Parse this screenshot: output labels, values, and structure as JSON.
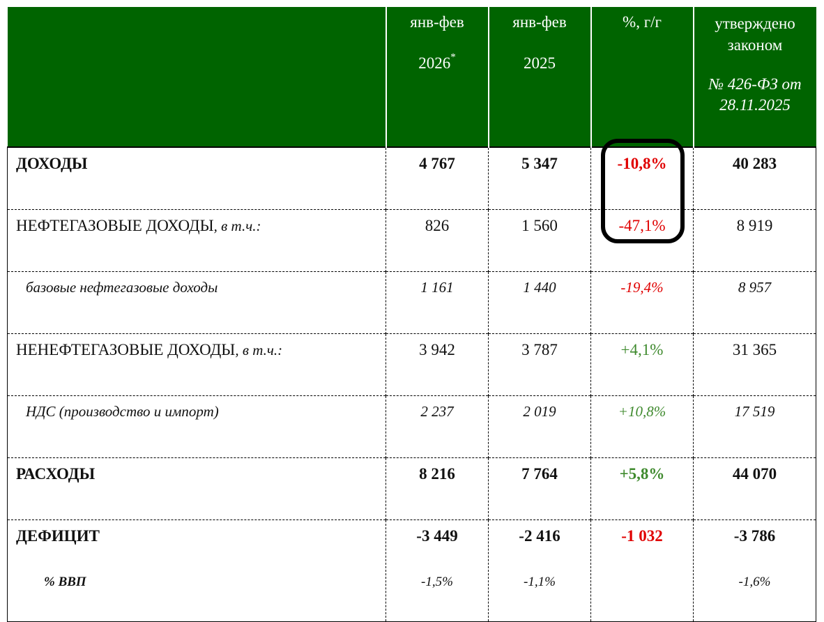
{
  "header": {
    "col1_line1": "янв-фев",
    "col1_line2": "2026",
    "col1_sup": "*",
    "col2_line1": "янв-фев",
    "col2_line2": "2025",
    "col3_line1": "%, г/г",
    "col4_line1": "утверждено законом",
    "col4_line2": "№ 426-ФЗ от 28.11.2025"
  },
  "rows": {
    "revenue": {
      "label": "ДОХОДЫ",
      "y2026": "4 767",
      "y2025": "5 347",
      "yoy": "-10,8%",
      "law": "40 283"
    },
    "oilgas": {
      "label": "НЕФТЕГАЗОВЫЕ ДОХОДЫ",
      "suffix": ", в т.ч.:",
      "y2026": "826",
      "y2025": "1 560",
      "yoy": "-47,1%",
      "law": "8 919"
    },
    "base_oilgas": {
      "label": "базовые нефтегазовые доходы",
      "y2026": "1 161",
      "y2025": "1 440",
      "yoy": "-19,4%",
      "law": "8 957"
    },
    "nonoil": {
      "label": "НЕНЕФТЕГАЗОВЫЕ ДОХОДЫ",
      "suffix": ", в т.ч.:",
      "y2026": "3 942",
      "y2025": "3 787",
      "yoy": "+4,1%",
      "law": "31 365"
    },
    "vat": {
      "label": "НДС (производство и импорт)",
      "y2026": "2 237",
      "y2025": "2 019",
      "yoy": "+10,8%",
      "law": "17 519"
    },
    "expenses": {
      "label": "РАСХОДЫ",
      "y2026": "8 216",
      "y2025": "7 764",
      "yoy": "+5,8%",
      "law": "44 070"
    },
    "deficit": {
      "label": "ДЕФИЦИТ",
      "y2026": "-3 449",
      "y2025": "-2 416",
      "yoy": "-1 032",
      "law": "-3 786"
    },
    "gdp": {
      "label": "% ВВП",
      "y2026": "-1,5%",
      "y2025": "-1,1%",
      "law": "-1,6%"
    }
  },
  "colors": {
    "header_bg": "#006400",
    "negative": "#e00000",
    "positive": "#3f8a2e"
  }
}
